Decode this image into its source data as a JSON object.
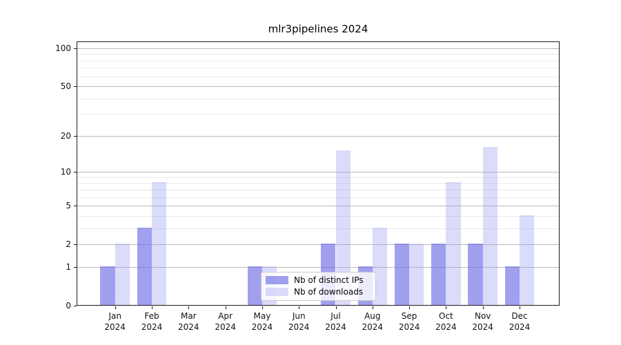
{
  "figure": {
    "title": "mlr3pipelines 2024"
  },
  "chart_data": {
    "type": "bar",
    "title": "mlr3pipelines 2024",
    "yscale": "log1p",
    "grid": true,
    "categories": [
      "Jan",
      "Feb",
      "Mar",
      "Apr",
      "May",
      "Jun",
      "Jul",
      "Aug",
      "Sep",
      "Oct",
      "Nov",
      "Dec"
    ],
    "x_year": "2024",
    "yticks": [
      0,
      1,
      2,
      5,
      10,
      20,
      50,
      100
    ],
    "minor_gridlines": [
      3,
      4,
      6,
      7,
      8,
      9,
      30,
      40,
      60,
      70,
      80,
      90
    ],
    "ylim": [
      0,
      113
    ],
    "series": [
      {
        "name": "Nb of distinct IPs",
        "color": "rgba(115,115,230,0.68)",
        "values": [
          1,
          3,
          0,
          0,
          1,
          0,
          2,
          1,
          2,
          2,
          2,
          1
        ]
      },
      {
        "name": "Nb of downloads",
        "color": "rgba(160,160,242,0.38)",
        "values": [
          2,
          8,
          0,
          0,
          1,
          0,
          15,
          3,
          2,
          8,
          16,
          4
        ]
      }
    ],
    "legend_position": "lower-center-inside"
  }
}
